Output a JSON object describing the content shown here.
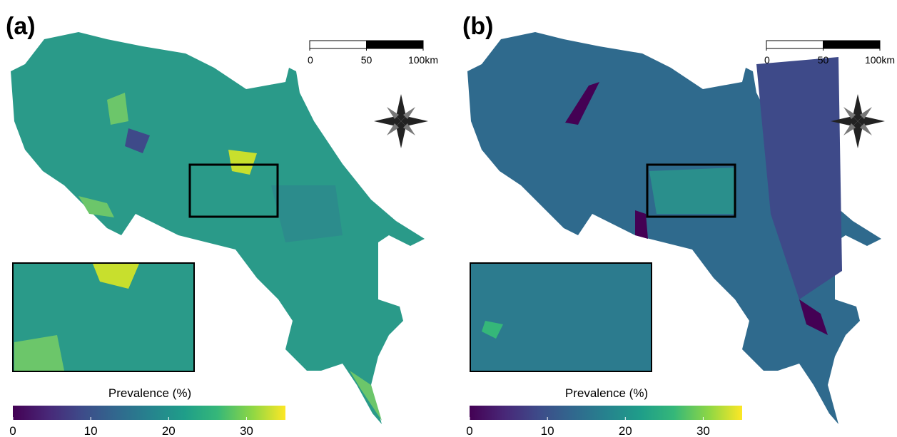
{
  "panels": [
    {
      "label": "(a)",
      "scale_bar": {
        "ticks": [
          0,
          50,
          {
            "value": 100,
            "label": "100km"
          }
        ],
        "range": [
          0,
          100
        ]
      },
      "colorbar": {
        "title": "Prevalence (%)",
        "range": [
          0,
          35
        ],
        "ticks": [
          0,
          10,
          20,
          30
        ]
      }
    },
    {
      "label": "(b)",
      "scale_bar": {
        "ticks": [
          0,
          50,
          {
            "value": 100,
            "label": "100km"
          }
        ],
        "range": [
          0,
          100
        ]
      },
      "colorbar": {
        "title": "Prevalence (%)",
        "range": [
          0,
          35
        ],
        "ticks": [
          0,
          10,
          20,
          30
        ]
      }
    }
  ]
}
